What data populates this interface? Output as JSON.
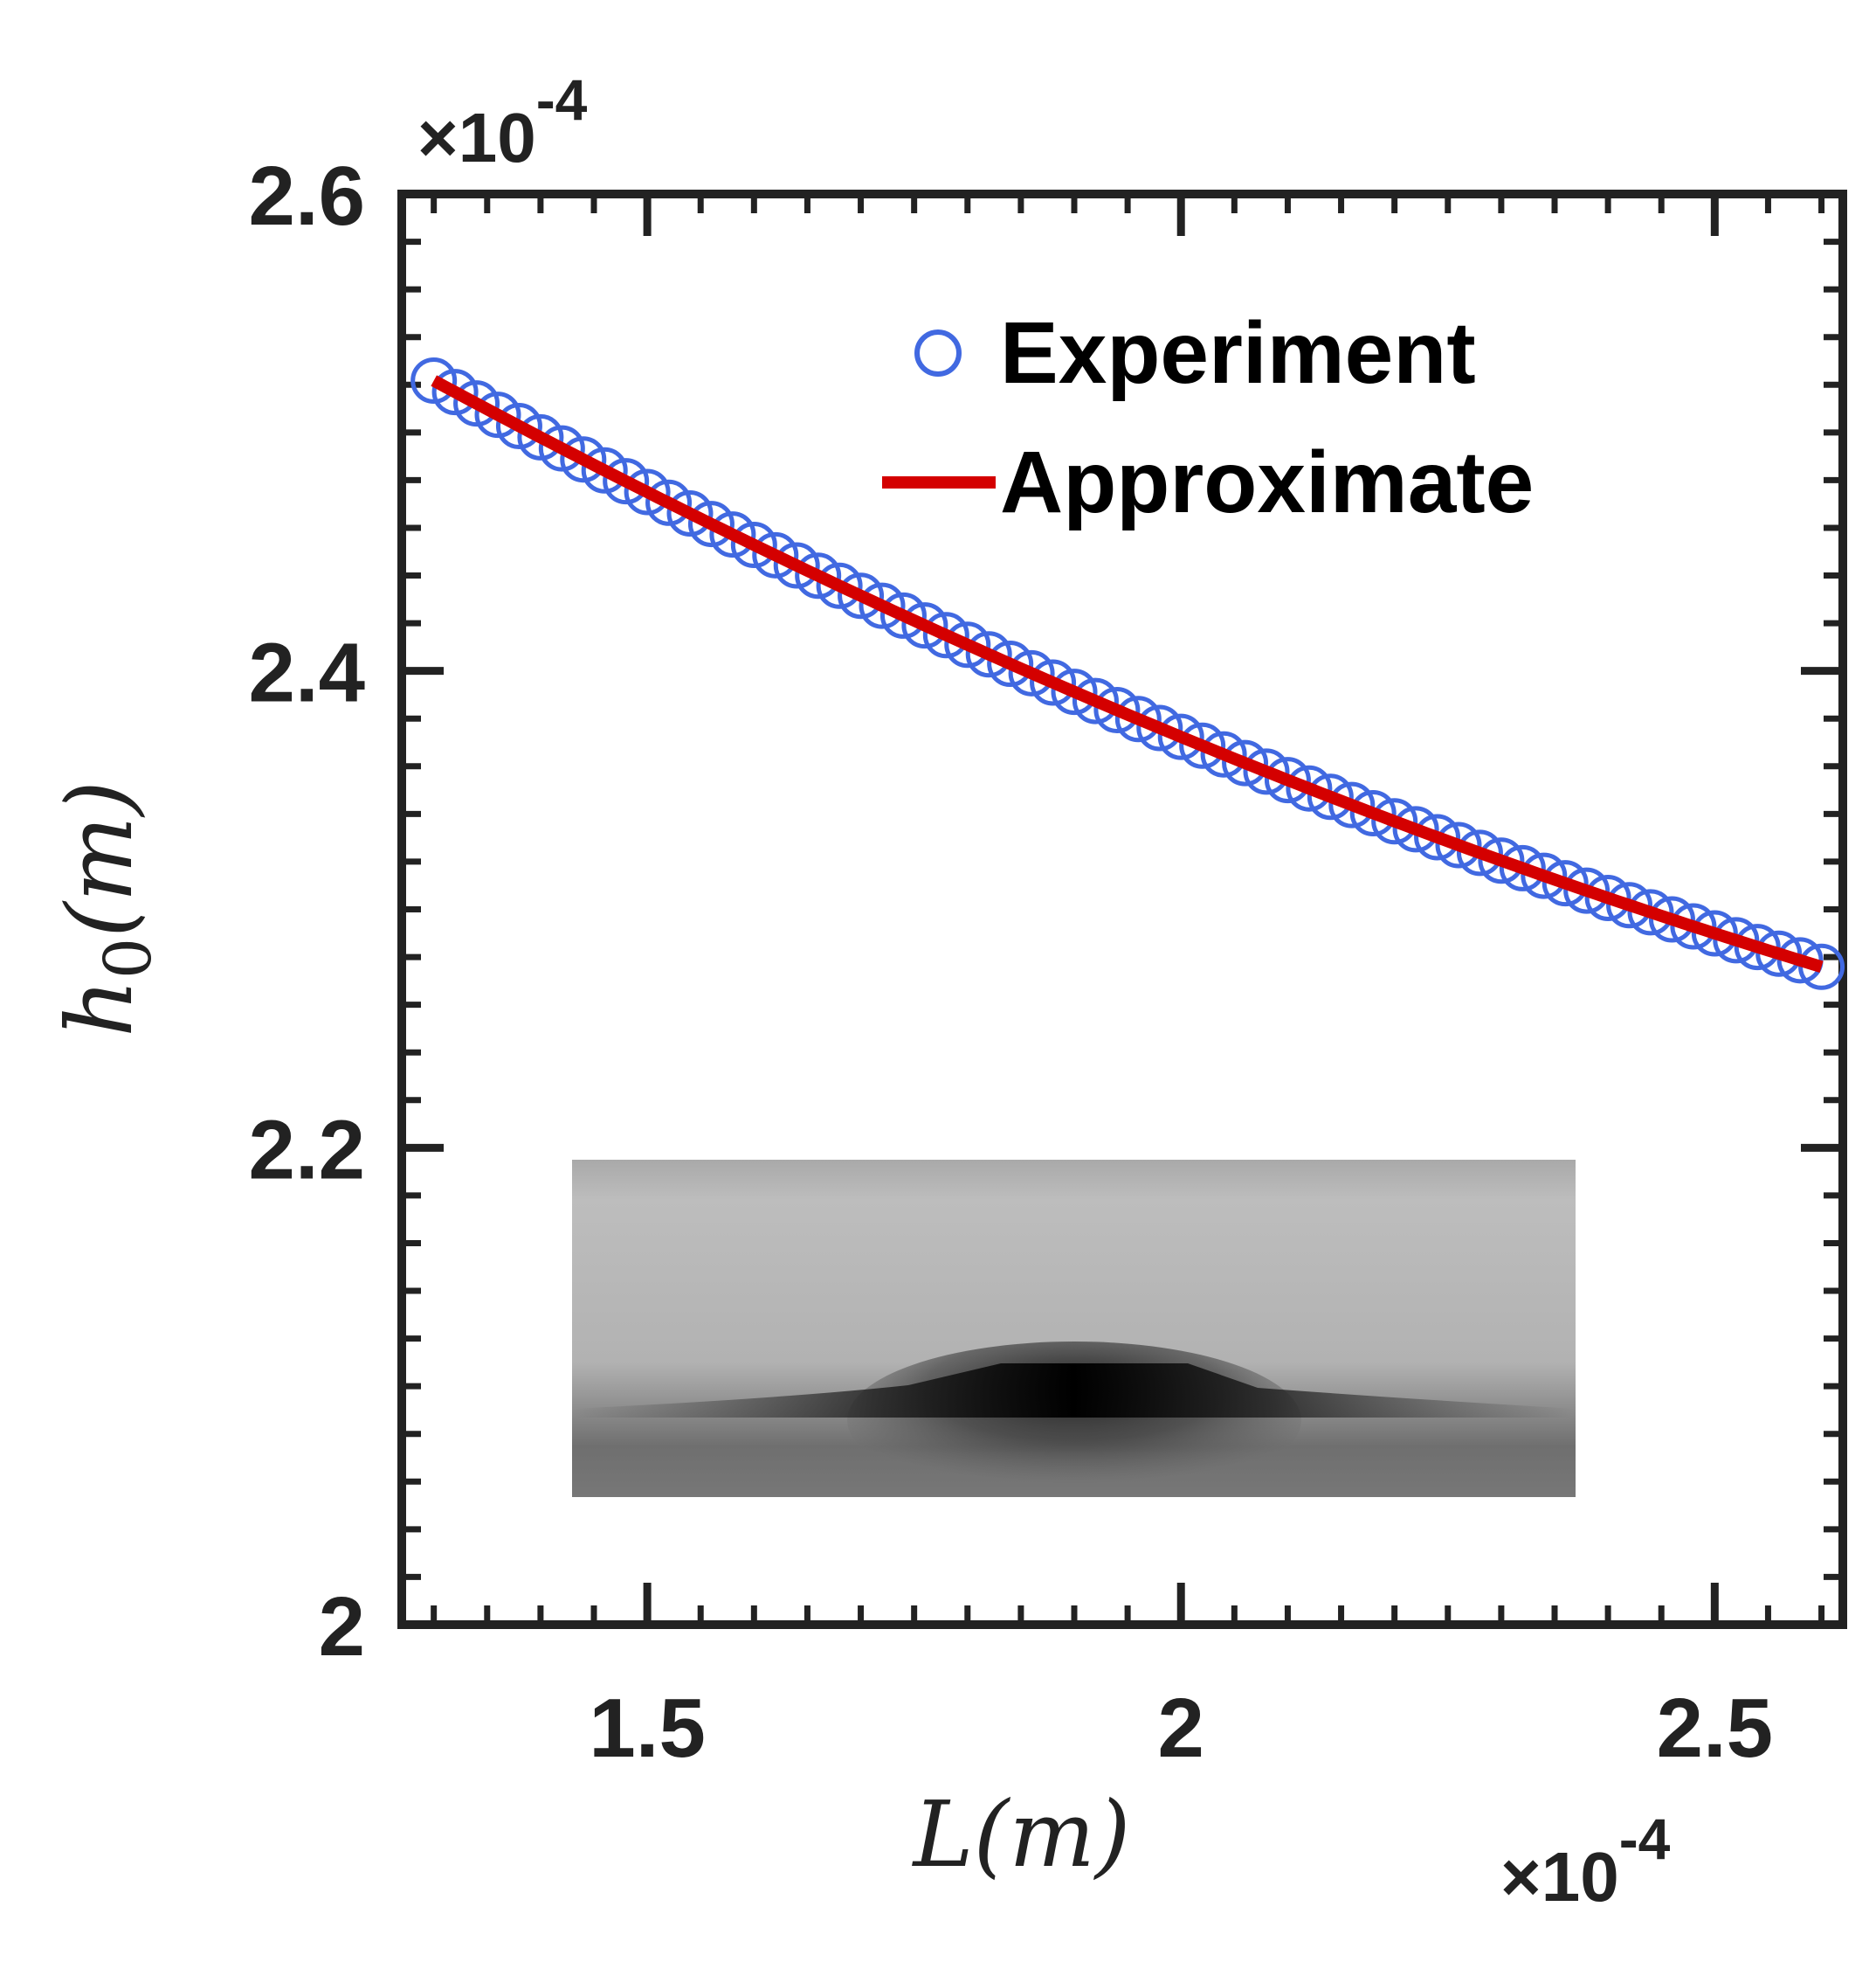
{
  "chart_data": {
    "type": "line",
    "xlabel": "L(m)",
    "ylabel": "h_0(m)",
    "ylabel_parts": {
      "base": "h",
      "subscript": "0",
      "rest": "(m)"
    },
    "x_exponent": {
      "prefix": "×10",
      "power": "-4"
    },
    "y_exponent": {
      "prefix": "×10",
      "power": "-4"
    },
    "xlim": [
      1.27,
      2.62
    ],
    "ylim": [
      2.0,
      2.6
    ],
    "x_ticks": [
      1.5,
      2.0,
      2.5
    ],
    "x_tick_labels": [
      "1.5",
      "2",
      "2.5"
    ],
    "y_ticks": [
      2.0,
      2.2,
      2.4,
      2.6
    ],
    "y_tick_labels": [
      "2",
      "2.2",
      "2.4",
      "2.6"
    ],
    "x_minor_step": 0.05,
    "y_minor_step": 0.02,
    "grid": false,
    "legend_position": "top-right",
    "series": [
      {
        "name": "Experiment",
        "style": "markers-circle",
        "color": "#4169e1",
        "x_start": 1.3,
        "x_end": 2.6,
        "n_points": 66,
        "fit": {
          "a": 0.04058,
          "b": -0.3474,
          "c": 2.9048
        }
      },
      {
        "name": "Approximate",
        "style": "line",
        "color": "#d40000",
        "x_start": 1.3,
        "x_end": 2.6,
        "n_points": 131,
        "fit": {
          "a": 0.04058,
          "b": -0.3474,
          "c": 2.9048
        }
      }
    ]
  },
  "inset": {
    "description_name": "droplet-photo-inset",
    "background_top": "#c4c4c4",
    "background_bottom": "#808080",
    "shadow_color": "#0a0a0a"
  },
  "colors": {
    "axis": "#222222",
    "experiment": "#4169e1",
    "approximate": "#d40000"
  }
}
